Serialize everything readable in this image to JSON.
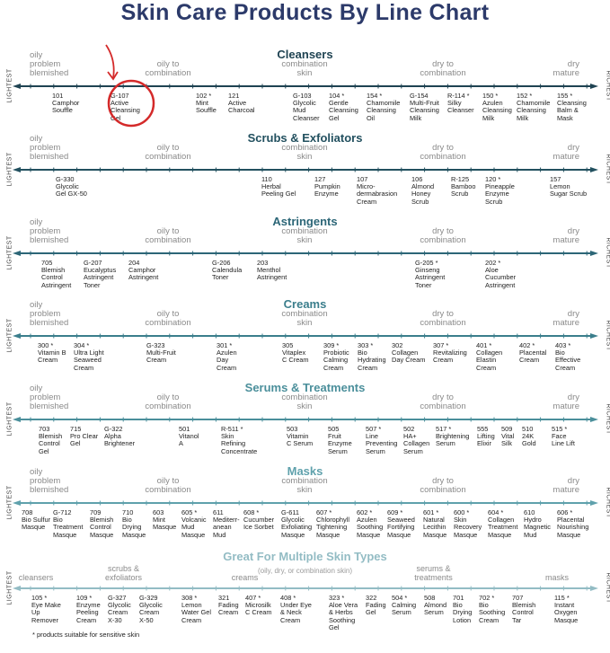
{
  "title": "Skin Care Products By Line Chart",
  "axis_left": "LIGHTEST",
  "axis_right": "RICHEST",
  "skin_types": [
    "oily\nproblem\nblemished",
    "oily to\ncombination",
    "combination\nskin",
    "dry to\ncombination",
    "dry\nmature"
  ],
  "highlight_color": "#d42a2a",
  "footnote": "* products suitable for sensitive skin",
  "chart_data": {
    "type": "timeline",
    "sections": [
      {
        "title": "Cleansers",
        "color": "#1f4352",
        "items": [
          "101\nCamphor\nSouffle",
          "G-107\nActive\nCleansing\nGel",
          "102 *\nMint\nSouffle",
          "121\nActive\nCharcoal",
          "G-103\nGlycolic\nMud\nCleanser",
          "104 *\nGentle\nCleansing\nGel",
          "154 *\nChamomile\nCleansing\nOil",
          "G-154\nMulti-Fruit\nCleansing\nMilk",
          "R-114 *\nSilky\nCleanser",
          "150 *\nAzulen\nCleansing\nMilk",
          "152 *\nChamomile\nCleansing\nMilk",
          "155 *\nCleansing\nBalm &\nMask"
        ],
        "highlighted": "G-107"
      },
      {
        "title": "Scrubs & Exfoliators",
        "color": "#22505f",
        "items": [
          "G-330\nGlycolic\nGel GX-50",
          "110\nHerbal\nPeeling Gel",
          "127\nPumpkin\nEnzyme",
          "107\nMicro-\ndermabrasion\nCream",
          "106\nAlmond\nHoney\nScrub",
          "R-125\nBamboo\nScrub",
          "120 *\nPineapple\nEnzyme\nScrub",
          "157\nLemon\nSugar Scrub"
        ]
      },
      {
        "title": "Astringents",
        "color": "#2c6677",
        "items": [
          "705\nBlemish\nControl\nAstringent",
          "G-207\nEucalyptus\nAstringent\nToner",
          "204\nCamphor\nAstringent",
          "G-206\nCalendula\nToner",
          "203\nMenthol\nAstringent",
          "G-205 *\nGinseng\nAstringent\nToner",
          "202 *\nAloe\nCucumber\nAstringent"
        ]
      },
      {
        "title": "Creams",
        "color": "#3b7e8c",
        "items": [
          "300 *\nVitamin B\nCream",
          "304 *\nUltra Light\nSeaweed\nCream",
          "G-323\nMulti-Fruit\nCream",
          "301 *\nAzulen\nDay\nCream",
          "305\nVitaplex\nC Cream",
          "309 *\nProbiotic\nCalming\nCream",
          "303 *\nBio\nHydrating\nCream",
          "302\nCollagen\nDay Cream",
          "307 *\nRevitalizing\nCream",
          "401 *\nCollagen\nElastin\nCream",
          "402 *\nPlacental\nCream",
          "403 *\nBio\nEffective\nCream"
        ]
      },
      {
        "title": "Serums & Treatments",
        "color": "#4b8f9b",
        "items": [
          "703\nBlemish\nControl\nGel",
          "715\nPro Clear\nGel",
          "G-322\nAlpha\nBrightener",
          "501\nVitanol\nA",
          "R-511 *\nSkin\nRefining\nConcentrate",
          "503\nVitamin\nC Serum",
          "505\nFruit\nEnzyme\nSerum",
          "507 *\nLine\nPreventing\nSerum",
          "502\nHA+\nCollagen\nSerum",
          "517 *\nBrightening\nSerum",
          "555\nLifting\nElixir",
          "509\nVital\nSilk",
          "510\n24K\nGold",
          "515 *\nFace\nLine Lift"
        ]
      },
      {
        "title": "Masks",
        "color": "#5fa1ac",
        "items": [
          "708\nBio Sulfur\nMasque",
          "G-712\nBio\nTreatment\nMasque",
          "709\nBlemish\nControl\nMasque",
          "710\nBio\nDrying\nMasque",
          "603\nMint\nMasque",
          "605 *\nVolcanic\nMud\nMasque",
          "611\nMediterr-\nanean\nMud",
          "608 *\nCucumber\nIce Sorbet",
          "G-611\nGlycolic\nExfoliating\nMasque",
          "607 *\nChlorophyll\nTightening\nMasque",
          "602 *\nAzulen\nSoothing\nMasque",
          "609 *\nSeaweed\nFortifying\nMasque",
          "601 *\nNatural\nLecithin\nMasque",
          "600 *\nSkin\nRecovery\nMasque",
          "604 *\nCollagen\nTreatment\nMasque",
          "610\nHydro\nMagnetic\nMud",
          "606 *\nPlacental\nNourishing\nMasque"
        ]
      },
      {
        "title": "Great For Multiple Skin Types",
        "subtitle": "(oily, dry, or combination skin)",
        "color": "#93bcc4",
        "categories": [
          "cleansers",
          "scrubs &\nexfoliators",
          "creams",
          "serums &\ntreatments",
          "masks"
        ],
        "items": [
          "105 *\nEye Make\nUp\nRemover",
          "109 *\nEnzyme\nPeeling\nCream",
          "G-327\nGlycolic\nCream\nX-30",
          "G-329\nGlycolic\nCream\nX-50",
          "308 *\nLemon\nWater Gel\nCream",
          "321\nFading\nCream",
          "407 *\nMicrosilk\nC Cream",
          "408 *\nUnder Eye\n& Neck\nCream",
          "323 *\nAloe Vera\n& Herbs\nSoothing\nGel",
          "322\nFading\nGel",
          "504 *\nCalming\nSerum",
          "508\nAlmond\nSerum",
          "701\nBio\nDrying\nLotion",
          "702 *\nBio\nSoothing\nCream",
          "707\nBlemish\nControl\nTar",
          "115 *\nInstant\nOxygen\nMasque"
        ]
      }
    ]
  }
}
